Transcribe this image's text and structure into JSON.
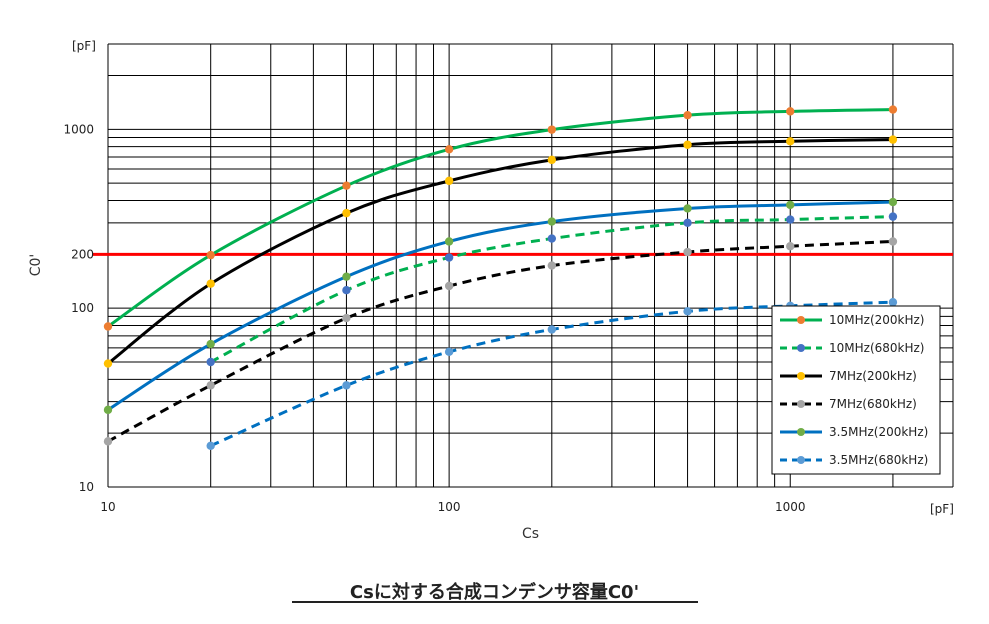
{
  "caption": "Csに対する合成コンデンサ容量C0'",
  "chart_data": {
    "type": "line",
    "xscale": "log",
    "yscale": "log",
    "xlim": [
      10,
      3000
    ],
    "ylim": [
      10,
      3000
    ],
    "xlabel": "Cs",
    "ylabel": "C0'",
    "x_unit": "[pF]",
    "y_unit": "[pF]",
    "x_tick_labels": [
      "10",
      "100",
      "1000"
    ],
    "y_tick_labels": [
      "10",
      "100",
      "200",
      "1000"
    ],
    "grid": true,
    "legend_position": "bottom-right",
    "reference_line": {
      "y": 200,
      "color": "#ff0000",
      "label": "200"
    },
    "series": [
      {
        "name": "10MHz(200kHz)",
        "line_color": "#00b050",
        "marker_color": "#ed7d31",
        "dashed": false,
        "x": [
          10,
          20,
          50,
          100,
          200,
          500,
          1000,
          2000
        ],
        "y": [
          79,
          198,
          484,
          773,
          996,
          1200,
          1260,
          1290
        ]
      },
      {
        "name": "10MHz(680kHz)",
        "line_color": "#00b050",
        "marker_color": "#4472c4",
        "dashed": true,
        "x": [
          20,
          50,
          100,
          200,
          500,
          1000,
          2000
        ],
        "y": [
          50,
          126,
          192,
          245,
          300,
          313,
          325
        ]
      },
      {
        "name": "7MHz(200kHz)",
        "line_color": "#000000",
        "marker_color": "#ffc000",
        "dashed": false,
        "x": [
          10,
          20,
          50,
          100,
          200,
          500,
          1000,
          2000
        ],
        "y": [
          49,
          137,
          340,
          515,
          675,
          820,
          857,
          876
        ]
      },
      {
        "name": "7MHz(680kHz)",
        "line_color": "#000000",
        "marker_color": "#a5a5a5",
        "dashed": true,
        "x": [
          10,
          20,
          50,
          100,
          200,
          500,
          1000,
          2000
        ],
        "y": [
          18,
          37,
          88,
          133,
          173,
          206,
          222,
          236
        ]
      },
      {
        "name": "3.5MHz(200kHz)",
        "line_color": "#0070c0",
        "marker_color": "#70ad47",
        "dashed": false,
        "x": [
          10,
          20,
          50,
          100,
          200,
          500,
          1000,
          2000
        ],
        "y": [
          27,
          63,
          150,
          236,
          305,
          361,
          378,
          392
        ]
      },
      {
        "name": "3.5MHz(680kHz)",
        "line_color": "#0070c0",
        "marker_color": "#5b9bd5",
        "dashed": true,
        "x": [
          20,
          50,
          100,
          200,
          500,
          1000,
          2000
        ],
        "y": [
          17,
          37,
          57,
          76,
          96,
          103,
          108
        ]
      }
    ]
  }
}
